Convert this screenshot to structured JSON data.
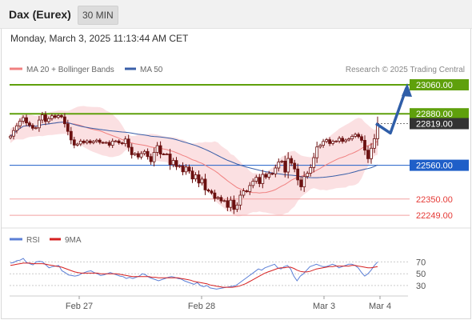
{
  "header": {
    "title": "Dax (Eurex)",
    "timeframe": "30 MIN",
    "datetime": "Monday, March 3, 2025 11:13:44 AM CET"
  },
  "legend": {
    "ma20_label": "MA 20 + Bollinger Bands",
    "ma50_label": "MA 50",
    "credit": "Research © 2025 Trading Central"
  },
  "rsi_legend": {
    "rsi_label": "RSI",
    "ma_label": "9MA"
  },
  "colors": {
    "resistance": "#5fa00c",
    "support": "#1f5fc8",
    "target": "#e53935",
    "current": "#333333",
    "ma20": "#f08080",
    "ma50": "#3a5fa8",
    "band": "#fadadd",
    "candle": "#6b1010",
    "arrow": "#2f5ea8",
    "rsi": "#5b7fd6",
    "rsi_ma": "#d62020"
  },
  "chart_data": [
    {
      "type": "candlestick",
      "x_labels": [
        "Feb 27",
        "Feb 28",
        "Mar 3",
        "Mar 4"
      ],
      "ylim": [
        22180,
        23100
      ],
      "levels": [
        {
          "value": 23060,
          "label": "23060.00",
          "kind": "resistance"
        },
        {
          "value": 22880,
          "label": "22880.00",
          "kind": "resistance"
        },
        {
          "value": 22819,
          "label": "22819.00",
          "kind": "current"
        },
        {
          "value": 22560,
          "label": "22560.00",
          "kind": "support"
        },
        {
          "value": 22350,
          "label": "22350.00",
          "kind": "target"
        },
        {
          "value": 22249,
          "label": "22249.00",
          "kind": "target"
        }
      ],
      "close": [
        22741,
        22776,
        22805,
        22834,
        22856,
        22823,
        22808,
        22790,
        22793,
        22841,
        22873,
        22832,
        22850,
        22868,
        22858,
        22869,
        22861,
        22818,
        22771,
        22718,
        22685,
        22692,
        22710,
        22700,
        22711,
        22700,
        22708,
        22716,
        22702,
        22700,
        22702,
        22684,
        22710,
        22711,
        22699,
        22694,
        22723,
        22672,
        22626,
        22633,
        22611,
        22633,
        22646,
        22614,
        22582,
        22640,
        22682,
        22630,
        22629,
        22630,
        22564,
        22590,
        22552,
        22557,
        22519,
        22549,
        22524,
        22475,
        22501,
        22450,
        22474,
        22407,
        22400,
        22388,
        22354,
        22360,
        22338,
        22340,
        22298,
        22343,
        22286,
        22313,
        22374,
        22401,
        22396,
        22434,
        22461,
        22485,
        22446,
        22503,
        22486,
        22509,
        22506,
        22543,
        22581,
        22586,
        22518,
        22602,
        22573,
        22537,
        22469,
        22426,
        22490,
        22510,
        22546,
        22607,
        22674,
        22684,
        22708,
        22719,
        22695,
        22708,
        22710,
        22728,
        22708,
        22717,
        22724,
        22740,
        22752,
        22738,
        22715,
        22654,
        22601,
        22666,
        22725,
        22819
      ]
    },
    {
      "type": "line",
      "title": "RSI",
      "ylim": [
        15,
        80
      ],
      "y_ticks": [
        "70",
        "50",
        "30"
      ],
      "series": [
        {
          "name": "RSI",
          "values": [
            68,
            69,
            72,
            73,
            76,
            69,
            67,
            65,
            70,
            71,
            70,
            65,
            60,
            62,
            63,
            64,
            55,
            52,
            48,
            47,
            46,
            47,
            50,
            52,
            54,
            55,
            52,
            50,
            47,
            48,
            50,
            52,
            50,
            48,
            46,
            45,
            42,
            44,
            42,
            44,
            46,
            50,
            48,
            44,
            42,
            40,
            38,
            40,
            42,
            44,
            45,
            44,
            42,
            41,
            38,
            36,
            34,
            32,
            35,
            30,
            28,
            30,
            26,
            25,
            24,
            25,
            26,
            27,
            28,
            29,
            30,
            34,
            38,
            42,
            46,
            50,
            54,
            58,
            56,
            60,
            62,
            64,
            66,
            60,
            58,
            62,
            64,
            58,
            46,
            38,
            46,
            50,
            56,
            62,
            64,
            66,
            64,
            62,
            62,
            64,
            66,
            64,
            60,
            62,
            64,
            66,
            66,
            64,
            60,
            52,
            46,
            50,
            56,
            64,
            70
          ]
        },
        {
          "name": "9MA",
          "values": [
            64,
            65,
            66,
            67,
            68,
            68,
            68,
            67,
            67,
            67,
            67,
            66,
            65,
            64,
            63,
            62,
            61,
            59,
            57,
            55,
            53,
            52,
            51,
            51,
            51,
            51,
            51,
            51,
            50,
            50,
            50,
            50,
            50,
            50,
            49,
            48,
            47,
            46,
            45,
            45,
            45,
            45,
            45,
            45,
            44,
            44,
            43,
            43,
            43,
            43,
            43,
            43,
            43,
            42,
            41,
            40,
            39,
            37,
            36,
            35,
            34,
            33,
            31,
            30,
            29,
            28,
            27,
            27,
            27,
            27,
            28,
            29,
            31,
            33,
            36,
            39,
            42,
            45,
            48,
            51,
            53,
            55,
            57,
            59,
            60,
            60,
            61,
            61,
            59,
            56,
            54,
            53,
            53,
            54,
            56,
            58,
            59,
            60,
            61,
            62,
            62,
            63,
            63,
            63,
            63,
            63,
            64,
            64,
            63,
            62,
            61,
            60,
            60,
            61,
            62
          ]
        }
      ]
    }
  ]
}
